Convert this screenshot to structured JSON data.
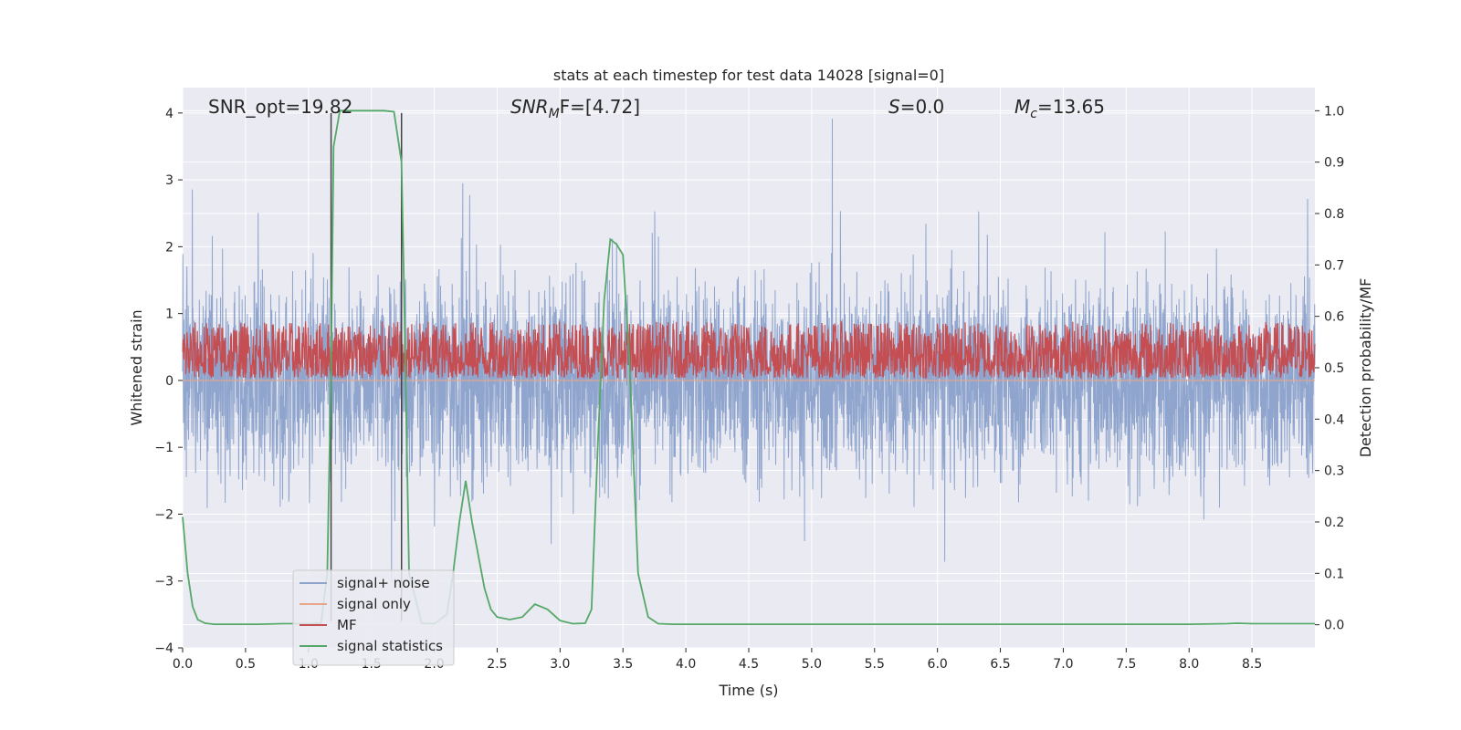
{
  "chart_data": {
    "type": "line",
    "title": "stats at each timestep for test data 14028 [signal=0]",
    "xlabel": "Time (s)",
    "ylabel": "Whitened strain",
    "ylabel_right": "Detection probability/MF",
    "xlim": [
      0.0,
      9.0
    ],
    "ylim": [
      -4.0,
      4.38
    ],
    "ylim_right": [
      -0.045,
      1.045
    ],
    "x_ticks": [
      0.0,
      0.5,
      1.0,
      1.5,
      2.0,
      2.5,
      3.0,
      3.5,
      4.0,
      4.5,
      5.0,
      5.5,
      6.0,
      6.5,
      7.0,
      7.5,
      8.0,
      8.5
    ],
    "x_tick_labels": [
      "0.0",
      "0.5",
      "1.0",
      "1.5",
      "2.0",
      "2.5",
      "3.0",
      "3.5",
      "4.0",
      "4.5",
      "5.0",
      "5.5",
      "6.0",
      "6.5",
      "7.0",
      "7.5",
      "8.0",
      "8.5"
    ],
    "y_ticks": [
      4,
      3,
      2,
      1,
      0,
      -1,
      -2,
      -3,
      -4
    ],
    "y_tick_labels": [
      "4",
      "3",
      "2",
      "1",
      "0",
      "−1",
      "−2",
      "−3",
      "−4"
    ],
    "y_right_ticks": [
      1.0,
      0.9,
      0.8,
      0.7,
      0.6,
      0.5,
      0.4,
      0.3,
      0.2,
      0.1,
      0.0
    ],
    "y_right_tick_labels": [
      "1.0",
      "0.9",
      "0.8",
      "0.7",
      "0.6",
      "0.5",
      "0.4",
      "0.3",
      "0.2",
      "0.1",
      "0.0"
    ],
    "annotations": [
      {
        "id": "snr-opt",
        "text": "SNR_opt=19.82",
        "x": 0.19
      },
      {
        "id": "snr-mf",
        "text": "SNR",
        "sub": "M",
        "rest": "F=[4.72]",
        "x": 2.6
      },
      {
        "id": "s-value",
        "text": "S",
        "rest": "=0.0",
        "x": 5.6
      },
      {
        "id": "mc-value",
        "text": "M",
        "sub": "c",
        "rest": "=13.65",
        "x": 6.6
      }
    ],
    "vlines": [
      1.18,
      1.74
    ],
    "series": [
      {
        "name": "signal+ noise",
        "color": "#8fa5cd",
        "kind": "noise",
        "axis": "left",
        "amplitude_range": [
          -3.6,
          4.0
        ]
      },
      {
        "name": "signal only",
        "color": "#e8a68a",
        "kind": "flat",
        "axis": "left",
        "value": 0.0
      },
      {
        "name": "MF",
        "color": "#c44e52",
        "kind": "mf",
        "axis": "right",
        "range": [
          0.48,
          0.59
        ]
      },
      {
        "name": "signal statistics",
        "color": "#55a868",
        "kind": "line",
        "axis": "right",
        "x": [
          0.0,
          0.04,
          0.08,
          0.12,
          0.18,
          0.25,
          0.4,
          0.6,
          0.8,
          1.0,
          1.1,
          1.15,
          1.18,
          1.2,
          1.25,
          1.3,
          1.4,
          1.5,
          1.6,
          1.68,
          1.74,
          1.76,
          1.8,
          1.9,
          2.0,
          2.1,
          2.15,
          2.2,
          2.25,
          2.3,
          2.4,
          2.45,
          2.5,
          2.6,
          2.7,
          2.8,
          2.9,
          3.0,
          3.1,
          3.2,
          3.25,
          3.3,
          3.35,
          3.4,
          3.45,
          3.5,
          3.55,
          3.62,
          3.7,
          3.78,
          3.9,
          4.2,
          5.0,
          6.0,
          7.0,
          8.0,
          8.3,
          8.38,
          8.5,
          9.0
        ],
        "y": [
          0.21,
          0.1,
          0.035,
          0.01,
          0.003,
          0.001,
          0.001,
          0.001,
          0.002,
          0.002,
          0.003,
          0.1,
          0.5,
          0.93,
          1.0,
          1.0,
          1.0,
          1.0,
          1.0,
          0.998,
          0.9,
          0.65,
          0.1,
          0.003,
          0.002,
          0.02,
          0.1,
          0.2,
          0.28,
          0.2,
          0.07,
          0.03,
          0.015,
          0.01,
          0.015,
          0.04,
          0.03,
          0.008,
          0.002,
          0.003,
          0.03,
          0.35,
          0.63,
          0.75,
          0.74,
          0.72,
          0.52,
          0.1,
          0.015,
          0.002,
          0.001,
          0.001,
          0.001,
          0.001,
          0.001,
          0.001,
          0.002,
          0.003,
          0.002,
          0.002
        ]
      }
    ],
    "legend": {
      "position": "lower-left"
    }
  }
}
